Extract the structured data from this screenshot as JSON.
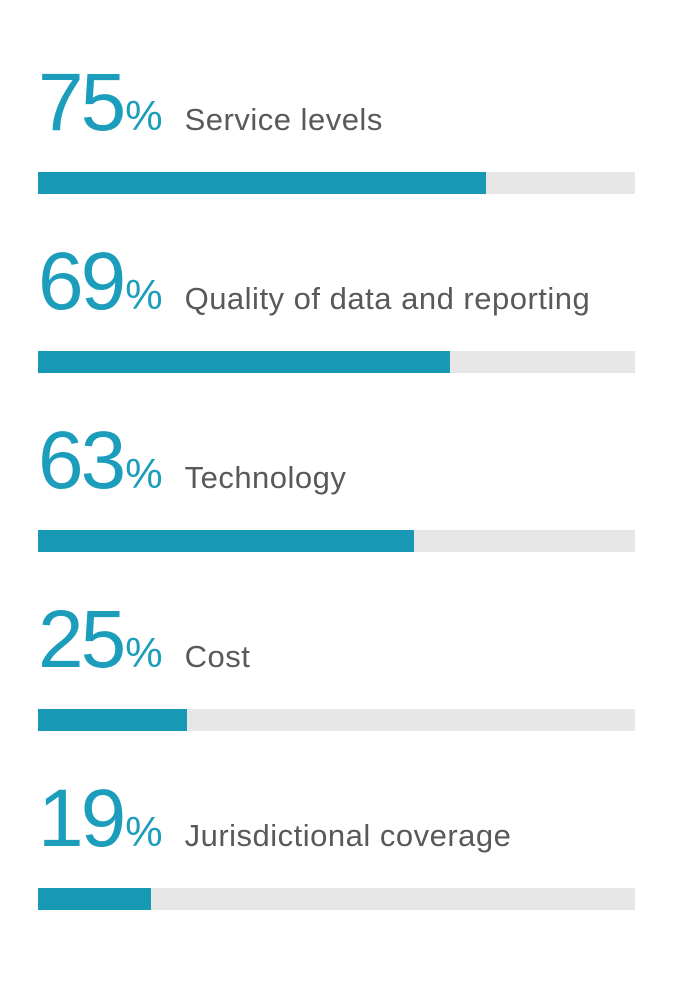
{
  "chart_data": {
    "type": "bar",
    "orientation": "horizontal",
    "title": "",
    "xlabel": "",
    "ylabel": "",
    "categories": [
      "Service levels",
      "Quality of data and reporting",
      "Technology",
      "Cost",
      "Jurisdictional coverage"
    ],
    "values": [
      75,
      69,
      63,
      25,
      19
    ],
    "value_labels": [
      "75%",
      "69%",
      "63%",
      "25%",
      "19%"
    ],
    "unit": "%",
    "xlim": [
      0,
      100
    ],
    "grid": false,
    "legend": false,
    "colors": {
      "accent": "#1b9dbb",
      "bar_fill": "#1798b5",
      "bar_track": "#e7e7e7",
      "label_text": "#58595b",
      "background": "#ffffff"
    }
  },
  "rows": [
    {
      "value": "75",
      "percent_sign": "%",
      "label": "Service levels",
      "percent": 75
    },
    {
      "value": "69",
      "percent_sign": "%",
      "label": "Quality of data and reporting",
      "percent": 69
    },
    {
      "value": "63",
      "percent_sign": "%",
      "label": "Technology",
      "percent": 63
    },
    {
      "value": "25",
      "percent_sign": "%",
      "label": "Cost",
      "percent": 25
    },
    {
      "value": "19",
      "percent_sign": "%",
      "label": "Jurisdictional coverage",
      "percent": 19
    }
  ]
}
